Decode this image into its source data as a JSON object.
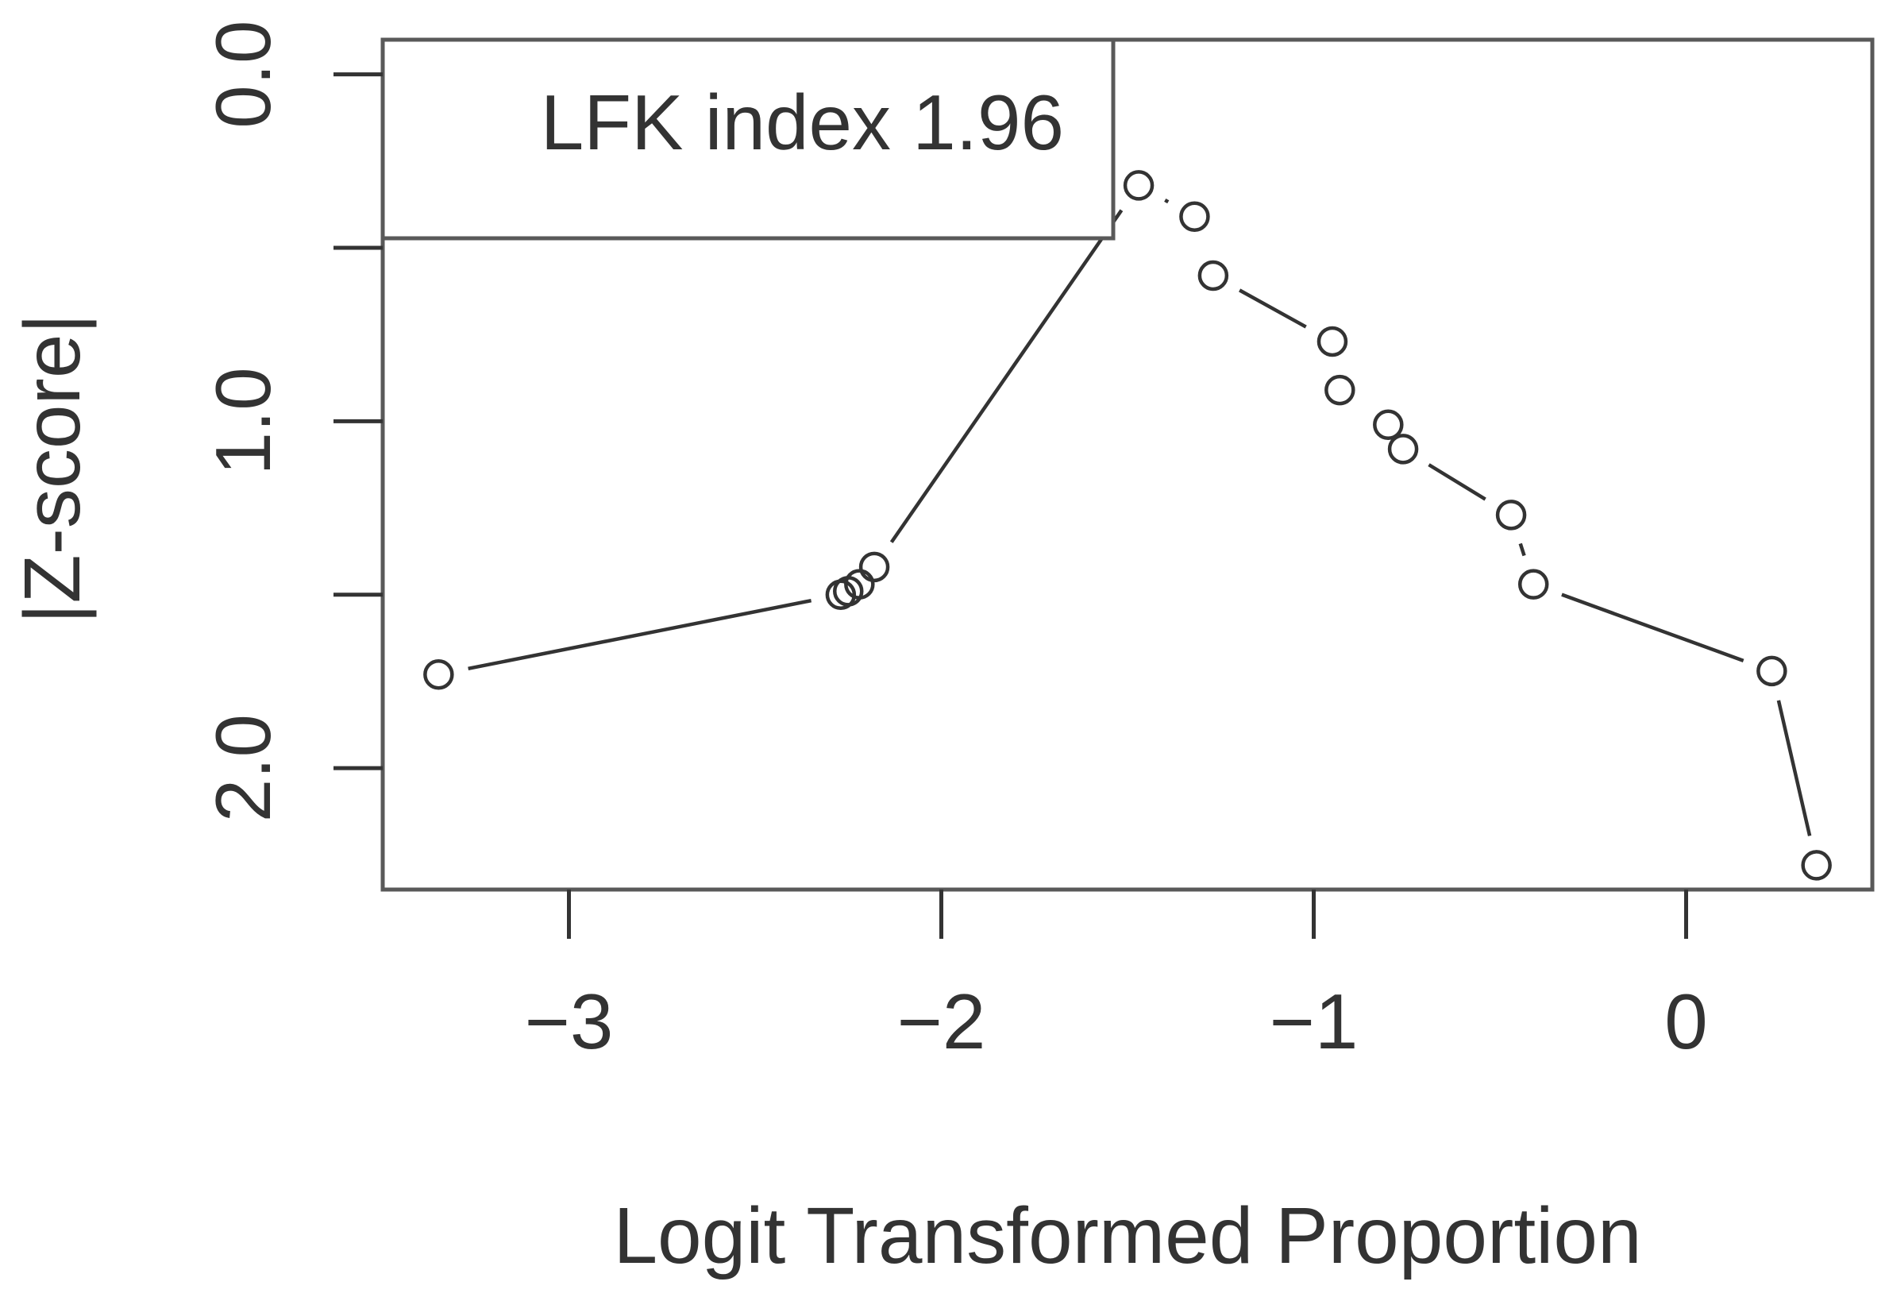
{
  "chart_data": {
    "type": "line",
    "xlabel": "Logit Transformed Proportion",
    "ylabel": "|Z-score|",
    "xlim": [
      -3.5,
      0.5
    ],
    "ylim": [
      2.35,
      -0.1
    ],
    "y_reversed": true,
    "xticks": [
      -3,
      -2,
      -1,
      0
    ],
    "xtick_labels": [
      "−3",
      "−2",
      "−1",
      "0"
    ],
    "yticks": [
      0.0,
      0.5,
      1.0,
      1.5,
      2.0
    ],
    "ytick_labels": [
      "0.0",
      "",
      "1.0",
      "",
      "2.0"
    ],
    "legend": {
      "text": "LFK index 1.96",
      "position": "top-left"
    },
    "grid": false,
    "marker": "open-circle",
    "series": [
      {
        "x": [
          -3.35,
          -2.27,
          -2.25,
          -2.22,
          -2.18,
          -1.47,
          -1.32,
          -1.27,
          -0.95,
          -0.93,
          -0.8,
          -0.76,
          -0.47,
          -0.41,
          0.23,
          0.35
        ],
        "y": [
          1.73,
          1.5,
          1.49,
          1.47,
          1.42,
          0.32,
          0.41,
          0.58,
          0.77,
          0.91,
          1.01,
          1.08,
          1.27,
          1.47,
          1.72,
          2.28
        ]
      }
    ]
  }
}
